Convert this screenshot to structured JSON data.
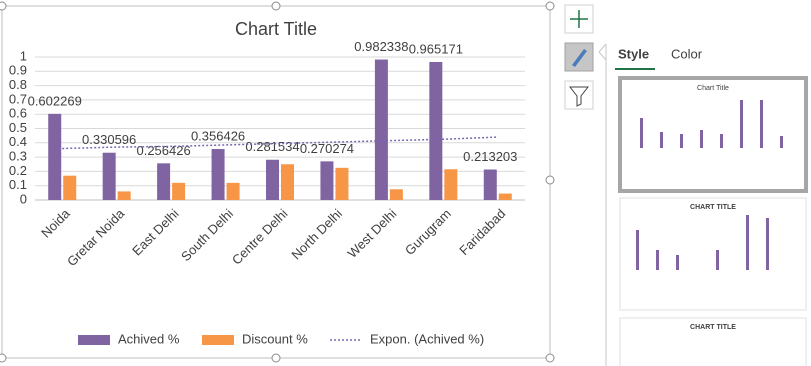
{
  "chart_data": {
    "type": "bar",
    "title": "Chart Title",
    "categories": [
      "Noida",
      "Gretar Noida",
      "East Delhi",
      "South Delhi",
      "Centre Delhi",
      "North Delhi",
      "West Delhi",
      "Gurugram",
      "Faridabad"
    ],
    "series": [
      {
        "name": "Achived %",
        "color": "#8064a2",
        "values": [
          0.602269,
          0.330596,
          0.256426,
          0.356426,
          0.281534,
          0.270274,
          0.982338,
          0.965171,
          0.213203
        ],
        "data_labels": true
      },
      {
        "name": "Discount %",
        "color": "#f79646",
        "values": [
          0.17,
          0.06,
          0.12,
          0.12,
          0.25,
          0.225,
          0.075,
          0.215,
          0.045
        ]
      },
      {
        "name": "Expon. (Achived %)",
        "color": "#7b68b0",
        "type": "trendline",
        "values": [
          0.36,
          0.37,
          0.375,
          0.385,
          0.395,
          0.405,
          0.415,
          0.425,
          0.44
        ]
      }
    ],
    "ylim": [
      0,
      1
    ],
    "yticks": [
      0,
      0.1,
      0.2,
      0.3,
      0.4,
      0.5,
      0.6,
      0.7,
      0.8,
      0.9,
      1
    ],
    "grid": true,
    "legend": "bottom"
  },
  "pane": {
    "tabs": [
      "Style",
      "Color"
    ],
    "thumbnails": [
      "Chart Title",
      "CHART TITLE",
      "CHART TITLE"
    ]
  }
}
